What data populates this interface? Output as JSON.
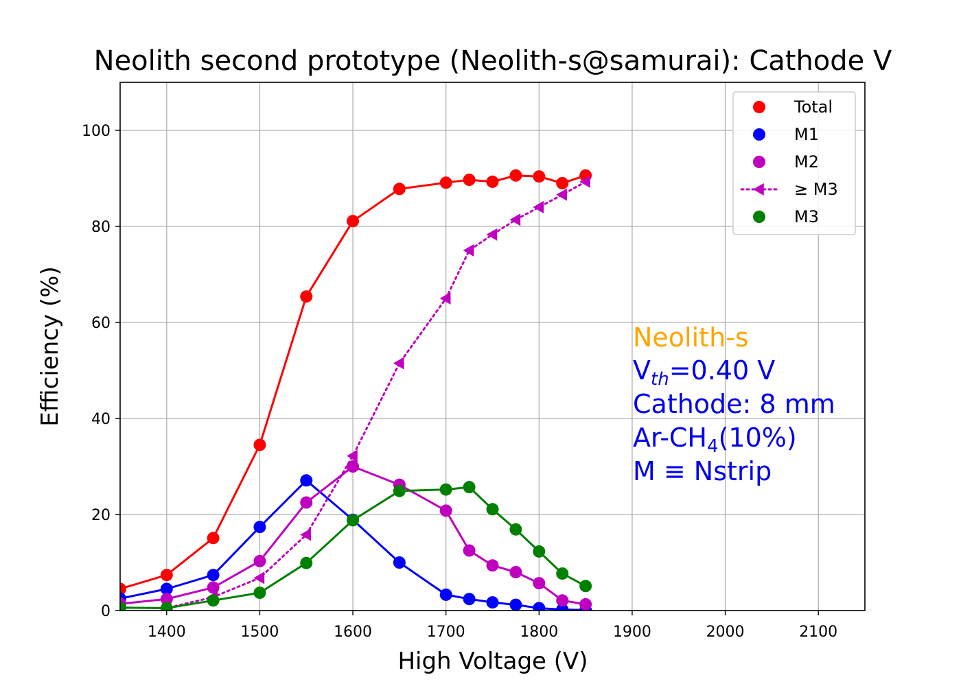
{
  "chart_data": {
    "type": "line",
    "title": "Neolith second prototype (Neolith-s@samurai): Cathode V",
    "xlabel": "High Voltage (V)",
    "ylabel": "Efficiency (%)",
    "xlim": [
      1350,
      2150
    ],
    "ylim": [
      0,
      110
    ],
    "xticks": [
      1400,
      1500,
      1600,
      1700,
      1800,
      1900,
      2000,
      2100
    ],
    "yticks": [
      0,
      20,
      40,
      60,
      80,
      100
    ],
    "grid": true,
    "legend_position": "top-right",
    "x": [
      1350,
      1400,
      1450,
      1500,
      1550,
      1600,
      1650,
      1700,
      1725,
      1750,
      1775,
      1800,
      1825,
      1850
    ],
    "series": [
      {
        "name": "Total",
        "color": "#ff0000",
        "marker": "circle",
        "line": "solid",
        "values": [
          4.5,
          7.4,
          15.1,
          34.5,
          65.4,
          81.1,
          87.8,
          89.1,
          89.7,
          89.3,
          90.6,
          90.4,
          89.0,
          90.6
        ]
      },
      {
        "name": "M1",
        "color": "#0000ff",
        "marker": "circle",
        "line": "solid",
        "values": [
          2.5,
          4.5,
          7.4,
          17.4,
          27.1,
          18.9,
          10.0,
          3.3,
          2.4,
          1.7,
          1.2,
          0.5,
          0.2,
          0.1
        ]
      },
      {
        "name": "M2",
        "color": "#bf00bf",
        "marker": "circle",
        "line": "solid",
        "values": [
          1.4,
          2.4,
          4.8,
          10.3,
          22.5,
          30.0,
          26.2,
          20.8,
          12.5,
          9.4,
          8.0,
          5.7,
          2.1,
          1.3
        ]
      },
      {
        "name": "≥ M3",
        "color": "#bf00bf",
        "marker": "triangle-left",
        "line": "dotted",
        "values": [
          0.6,
          0.5,
          2.8,
          6.8,
          15.8,
          32.2,
          51.5,
          65.0,
          75.0,
          78.3,
          81.4,
          84.0,
          86.6,
          89.3
        ]
      },
      {
        "name": "M3",
        "color": "#008000",
        "marker": "circle",
        "line": "solid",
        "values": [
          0.6,
          0.5,
          2.1,
          3.7,
          9.9,
          18.8,
          24.9,
          25.2,
          25.7,
          21.1,
          16.9,
          12.3,
          7.7,
          5.1
        ]
      }
    ],
    "annotations": {
      "detector": "Neolith-s",
      "detector_color": "#ffa500",
      "vth_prefix": "V",
      "vth_sub": "th",
      "vth_value": "=0.40 V",
      "cathode": "Cathode: 8 mm",
      "gas_prefix": "Ar-CH",
      "gas_sub": "4",
      "gas_suffix": "(10%)",
      "multiplicity": "M ≡ Nstrip",
      "text_color": "#0000ee"
    }
  }
}
